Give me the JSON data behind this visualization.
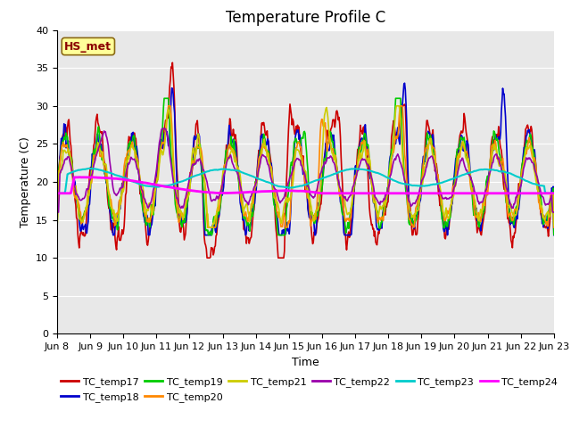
{
  "title": "Temperature Profile C",
  "xlabel": "Time",
  "ylabel": "Temperature (C)",
  "ylim": [
    0,
    40
  ],
  "yticks": [
    0,
    5,
    10,
    15,
    20,
    25,
    30,
    35,
    40
  ],
  "xtick_labels": [
    "Jun 8",
    "Jun 9",
    "Jun 10",
    "Jun 11",
    "Jun 12",
    "Jun 13",
    "Jun 14",
    "Jun 15",
    "Jun 16",
    "Jun 17",
    "Jun 18",
    "Jun 19",
    "Jun 20",
    "Jun 21",
    "Jun 22",
    "Jun 23"
  ],
  "series_order": [
    "TC_temp17",
    "TC_temp18",
    "TC_temp19",
    "TC_temp20",
    "TC_temp21",
    "TC_temp22",
    "TC_temp23",
    "TC_temp24"
  ],
  "series": {
    "TC_temp17": {
      "color": "#cc0000",
      "lw": 1.2
    },
    "TC_temp18": {
      "color": "#0000cc",
      "lw": 1.2
    },
    "TC_temp19": {
      "color": "#00cc00",
      "lw": 1.2
    },
    "TC_temp20": {
      "color": "#ff8800",
      "lw": 1.2
    },
    "TC_temp21": {
      "color": "#cccc00",
      "lw": 1.2
    },
    "TC_temp22": {
      "color": "#9900aa",
      "lw": 1.2
    },
    "TC_temp23": {
      "color": "#00cccc",
      "lw": 1.5
    },
    "TC_temp24": {
      "color": "#ff00ff",
      "lw": 2.0
    }
  },
  "annotation_text": "HS_met",
  "annotation_color": "#8b0000",
  "annotation_bg": "#ffff99",
  "annotation_border": "#8b6914",
  "bg_color": "#e8e8e8",
  "grid_color": "#ffffff",
  "title_fontsize": 12,
  "label_fontsize": 9,
  "tick_fontsize": 8
}
